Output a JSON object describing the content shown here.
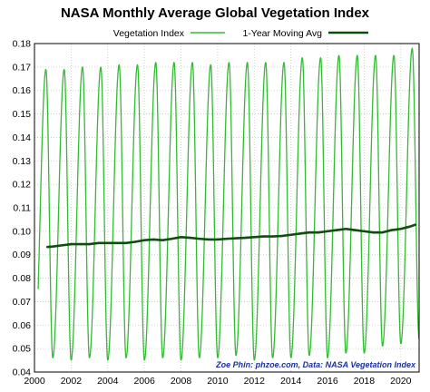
{
  "chart_data": {
    "type": "line",
    "title": "NASA Monthly Average Global Vegetation Index",
    "xlim": [
      2000,
      2021
    ],
    "ylim": [
      0.04,
      0.18
    ],
    "x_ticks": [
      "2000",
      "2002",
      "2004",
      "2006",
      "2008",
      "2010",
      "2012",
      "2014",
      "2016",
      "2018",
      "2020"
    ],
    "y_ticks": [
      "0.04",
      "0.05",
      "0.06",
      "0.07",
      "0.08",
      "0.09",
      "0.10",
      "0.11",
      "0.12",
      "0.13",
      "0.14",
      "0.15",
      "0.16",
      "0.17",
      "0.18"
    ],
    "grid": true,
    "legend_placement": "top",
    "series": [
      {
        "name": "Vegetation Index",
        "color": "#33bb33",
        "x_start": 2000.2,
        "peak_month": 7.5,
        "annual_peaks": [
          {
            "year": 2000,
            "value": 0.169
          },
          {
            "year": 2001,
            "value": 0.169
          },
          {
            "year": 2002,
            "value": 0.17
          },
          {
            "year": 2003,
            "value": 0.17
          },
          {
            "year": 2004,
            "value": 0.171
          },
          {
            "year": 2005,
            "value": 0.171
          },
          {
            "year": 2006,
            "value": 0.172
          },
          {
            "year": 2007,
            "value": 0.172
          },
          {
            "year": 2008,
            "value": 0.172
          },
          {
            "year": 2009,
            "value": 0.171
          },
          {
            "year": 2010,
            "value": 0.172
          },
          {
            "year": 2011,
            "value": 0.172
          },
          {
            "year": 2012,
            "value": 0.172
          },
          {
            "year": 2013,
            "value": 0.172
          },
          {
            "year": 2014,
            "value": 0.174
          },
          {
            "year": 2015,
            "value": 0.174
          },
          {
            "year": 2016,
            "value": 0.175
          },
          {
            "year": 2017,
            "value": 0.175
          },
          {
            "year": 2018,
            "value": 0.175
          },
          {
            "year": 2019,
            "value": 0.175
          },
          {
            "year": 2020,
            "value": 0.178
          }
        ],
        "annual_troughs": [
          {
            "year": 2000,
            "value": 0.047
          },
          {
            "year": 2001,
            "value": 0.046
          },
          {
            "year": 2002,
            "value": 0.045
          },
          {
            "year": 2003,
            "value": 0.046
          },
          {
            "year": 2004,
            "value": 0.045
          },
          {
            "year": 2005,
            "value": 0.046
          },
          {
            "year": 2006,
            "value": 0.045
          },
          {
            "year": 2007,
            "value": 0.046
          },
          {
            "year": 2008,
            "value": 0.045
          },
          {
            "year": 2009,
            "value": 0.046
          },
          {
            "year": 2010,
            "value": 0.046
          },
          {
            "year": 2011,
            "value": 0.047
          },
          {
            "year": 2012,
            "value": 0.045
          },
          {
            "year": 2013,
            "value": 0.046
          },
          {
            "year": 2014,
            "value": 0.046
          },
          {
            "year": 2015,
            "value": 0.047
          },
          {
            "year": 2016,
            "value": 0.046
          },
          {
            "year": 2017,
            "value": 0.048
          },
          {
            "year": 2018,
            "value": 0.048
          },
          {
            "year": 2019,
            "value": 0.051
          },
          {
            "year": 2020,
            "value": 0.052
          },
          {
            "year": 2021,
            "value": 0.054
          }
        ]
      },
      {
        "name": "1-Year Moving Avg",
        "color": "#0f4d0f",
        "x": [
          2000.7,
          2001.0,
          2001.5,
          2002.0,
          2002.5,
          2003.0,
          2003.5,
          2004.0,
          2004.5,
          2005.0,
          2005.5,
          2006.0,
          2006.5,
          2007.0,
          2007.5,
          2008.0,
          2008.5,
          2009.0,
          2009.5,
          2010.0,
          2010.5,
          2011.0,
          2011.5,
          2012.0,
          2012.5,
          2013.0,
          2013.5,
          2014.0,
          2014.5,
          2015.0,
          2015.5,
          2016.0,
          2016.5,
          2017.0,
          2017.5,
          2018.0,
          2018.5,
          2019.0,
          2019.5,
          2020.0,
          2020.5,
          2020.8
        ],
        "values": [
          0.0933,
          0.0935,
          0.094,
          0.0945,
          0.0945,
          0.0945,
          0.095,
          0.095,
          0.095,
          0.095,
          0.0955,
          0.0962,
          0.0965,
          0.0962,
          0.0968,
          0.0975,
          0.0972,
          0.0968,
          0.0965,
          0.0965,
          0.0968,
          0.097,
          0.0972,
          0.0975,
          0.0978,
          0.0978,
          0.098,
          0.0985,
          0.099,
          0.0995,
          0.0995,
          0.1,
          0.1005,
          0.101,
          0.1005,
          0.1,
          0.0995,
          0.0995,
          0.1005,
          0.101,
          0.102,
          0.1028
        ]
      }
    ],
    "annotation": "Zoe Phin: phzoe.com, Data: NASA Vegetation Index"
  }
}
